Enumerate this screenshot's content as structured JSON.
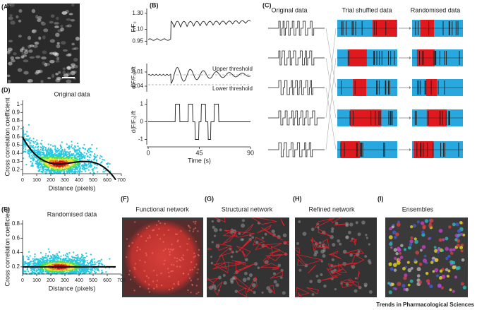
{
  "panels": {
    "A": {
      "label": "(A)"
    },
    "B": {
      "label": "(B)",
      "plots": [
        {
          "ylabel": "F/F₀",
          "ylim": [
            0.9,
            1.36
          ],
          "yticks": [
            {
              "value": 1.3,
              "label": "1.30"
            },
            {
              "value": 1.1,
              "label": "1.10"
            },
            0.95
          ]
        },
        {
          "ylabel": "d(F/F₀)/ft",
          "ylim": [
            -0.06,
            0.04
          ],
          "yticks": [
            0.01,
            -0.04
          ],
          "annotations": [
            "Upper threshold",
            "Lower threshold"
          ]
        },
        {
          "ylabel": "d(F/F₀)/ft",
          "ylim": [
            -1.3,
            1.3
          ],
          "yticks": [
            1,
            0,
            -1
          ]
        }
      ],
      "xlim": [
        0,
        90
      ],
      "xticks": [
        0,
        45,
        90
      ],
      "xlabel": "Time (s)"
    },
    "C": {
      "label": "(C)",
      "headers": [
        "Original data",
        "Trial shuffled data",
        "Randomised data"
      ]
    },
    "D": {
      "label": "(D)",
      "title": "Original data",
      "ylabel": "Cross correlation coefficient",
      "xlabel": "Distance (pixels)",
      "xlim": [
        0,
        700
      ],
      "xticks": [
        0,
        100,
        200,
        300,
        400,
        500,
        600,
        700
      ],
      "ylim": [
        0.15,
        1.05
      ],
      "yticks": [
        1,
        0.9,
        0.8,
        0.7,
        0.6,
        0.5,
        0.4,
        0.3,
        0.2
      ]
    },
    "E": {
      "label": "(E)",
      "title": "Randomised data",
      "ylabel": "Cross correlation coefficient",
      "xlabel": "Distance (pixels)",
      "xlim": [
        0,
        700
      ],
      "xticks": [
        0,
        100,
        200,
        300,
        400,
        500,
        600,
        700
      ],
      "ylim": [
        0.1,
        0.85
      ],
      "yticks": [
        0.8,
        0.6,
        0.4,
        0.2
      ]
    },
    "F": {
      "label": "(F)",
      "title": "Functional network"
    },
    "G": {
      "label": "(G)",
      "title": "Structural network"
    },
    "H": {
      "label": "(H)",
      "title": "Refined network"
    },
    "I": {
      "label": "(I)",
      "title": "Ensembles"
    }
  },
  "footer": "Trends in Pharmacological Sciences"
}
